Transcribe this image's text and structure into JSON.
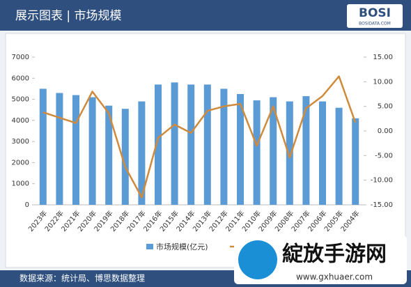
{
  "header": {
    "title": "展示图表 | 市场规模",
    "logo": "BOSI",
    "logo_sub": "BOSIDATA.COM"
  },
  "chart_data": {
    "type": "bar-line",
    "categories": [
      "2023年",
      "2022年",
      "2021年",
      "2020年",
      "2019年",
      "2018年",
      "2017年",
      "2016年",
      "2015年",
      "2014年",
      "2013年",
      "2012年",
      "2011年",
      "2010年",
      "2009年",
      "2008年",
      "2007年",
      "2006年",
      "2005年",
      "2004年"
    ],
    "series": [
      {
        "name": "市场规模(亿元)",
        "type": "bar",
        "color": "#5b9bd5",
        "values": [
          5500,
          5300,
          5200,
          5100,
          4700,
          4550,
          4900,
          5700,
          5800,
          5700,
          5700,
          5500,
          5250,
          4950,
          5100,
          4900,
          5150,
          4900,
          4600,
          4100
        ]
      },
      {
        "type": "line",
        "axis": "y2",
        "color": "#d08a3c",
        "values": [
          3.8,
          2.7,
          1.6,
          8.0,
          3.6,
          -7.3,
          -13.5,
          -1.4,
          1.3,
          -0.4,
          4.1,
          5.0,
          5.5,
          -3.0,
          5.0,
          -5.4,
          4.6,
          7.1,
          11.1,
          1.7
        ]
      }
    ],
    "ylim": [
      0,
      7000
    ],
    "yticks": [
      0,
      1000,
      2000,
      3000,
      4000,
      5000,
      6000,
      7000
    ],
    "y2lim": [
      -15,
      15
    ],
    "y2ticks": [
      {
        "value": -15,
        "label": "-15.00"
      },
      {
        "value": -10,
        "label": "-10.00"
      },
      {
        "value": -5,
        "label": "-5.00"
      },
      {
        "value": 0,
        "label": "0.00"
      },
      {
        "value": 5,
        "label": "5.00"
      },
      {
        "value": 10,
        "label": "10.00"
      },
      {
        "value": 15,
        "label": "15.00"
      }
    ]
  },
  "footer": {
    "source": "数据来源：统计局、博思数据整理"
  },
  "watermark": {
    "text": "綻放手游网",
    "url": "www.gxhuaer.com"
  }
}
